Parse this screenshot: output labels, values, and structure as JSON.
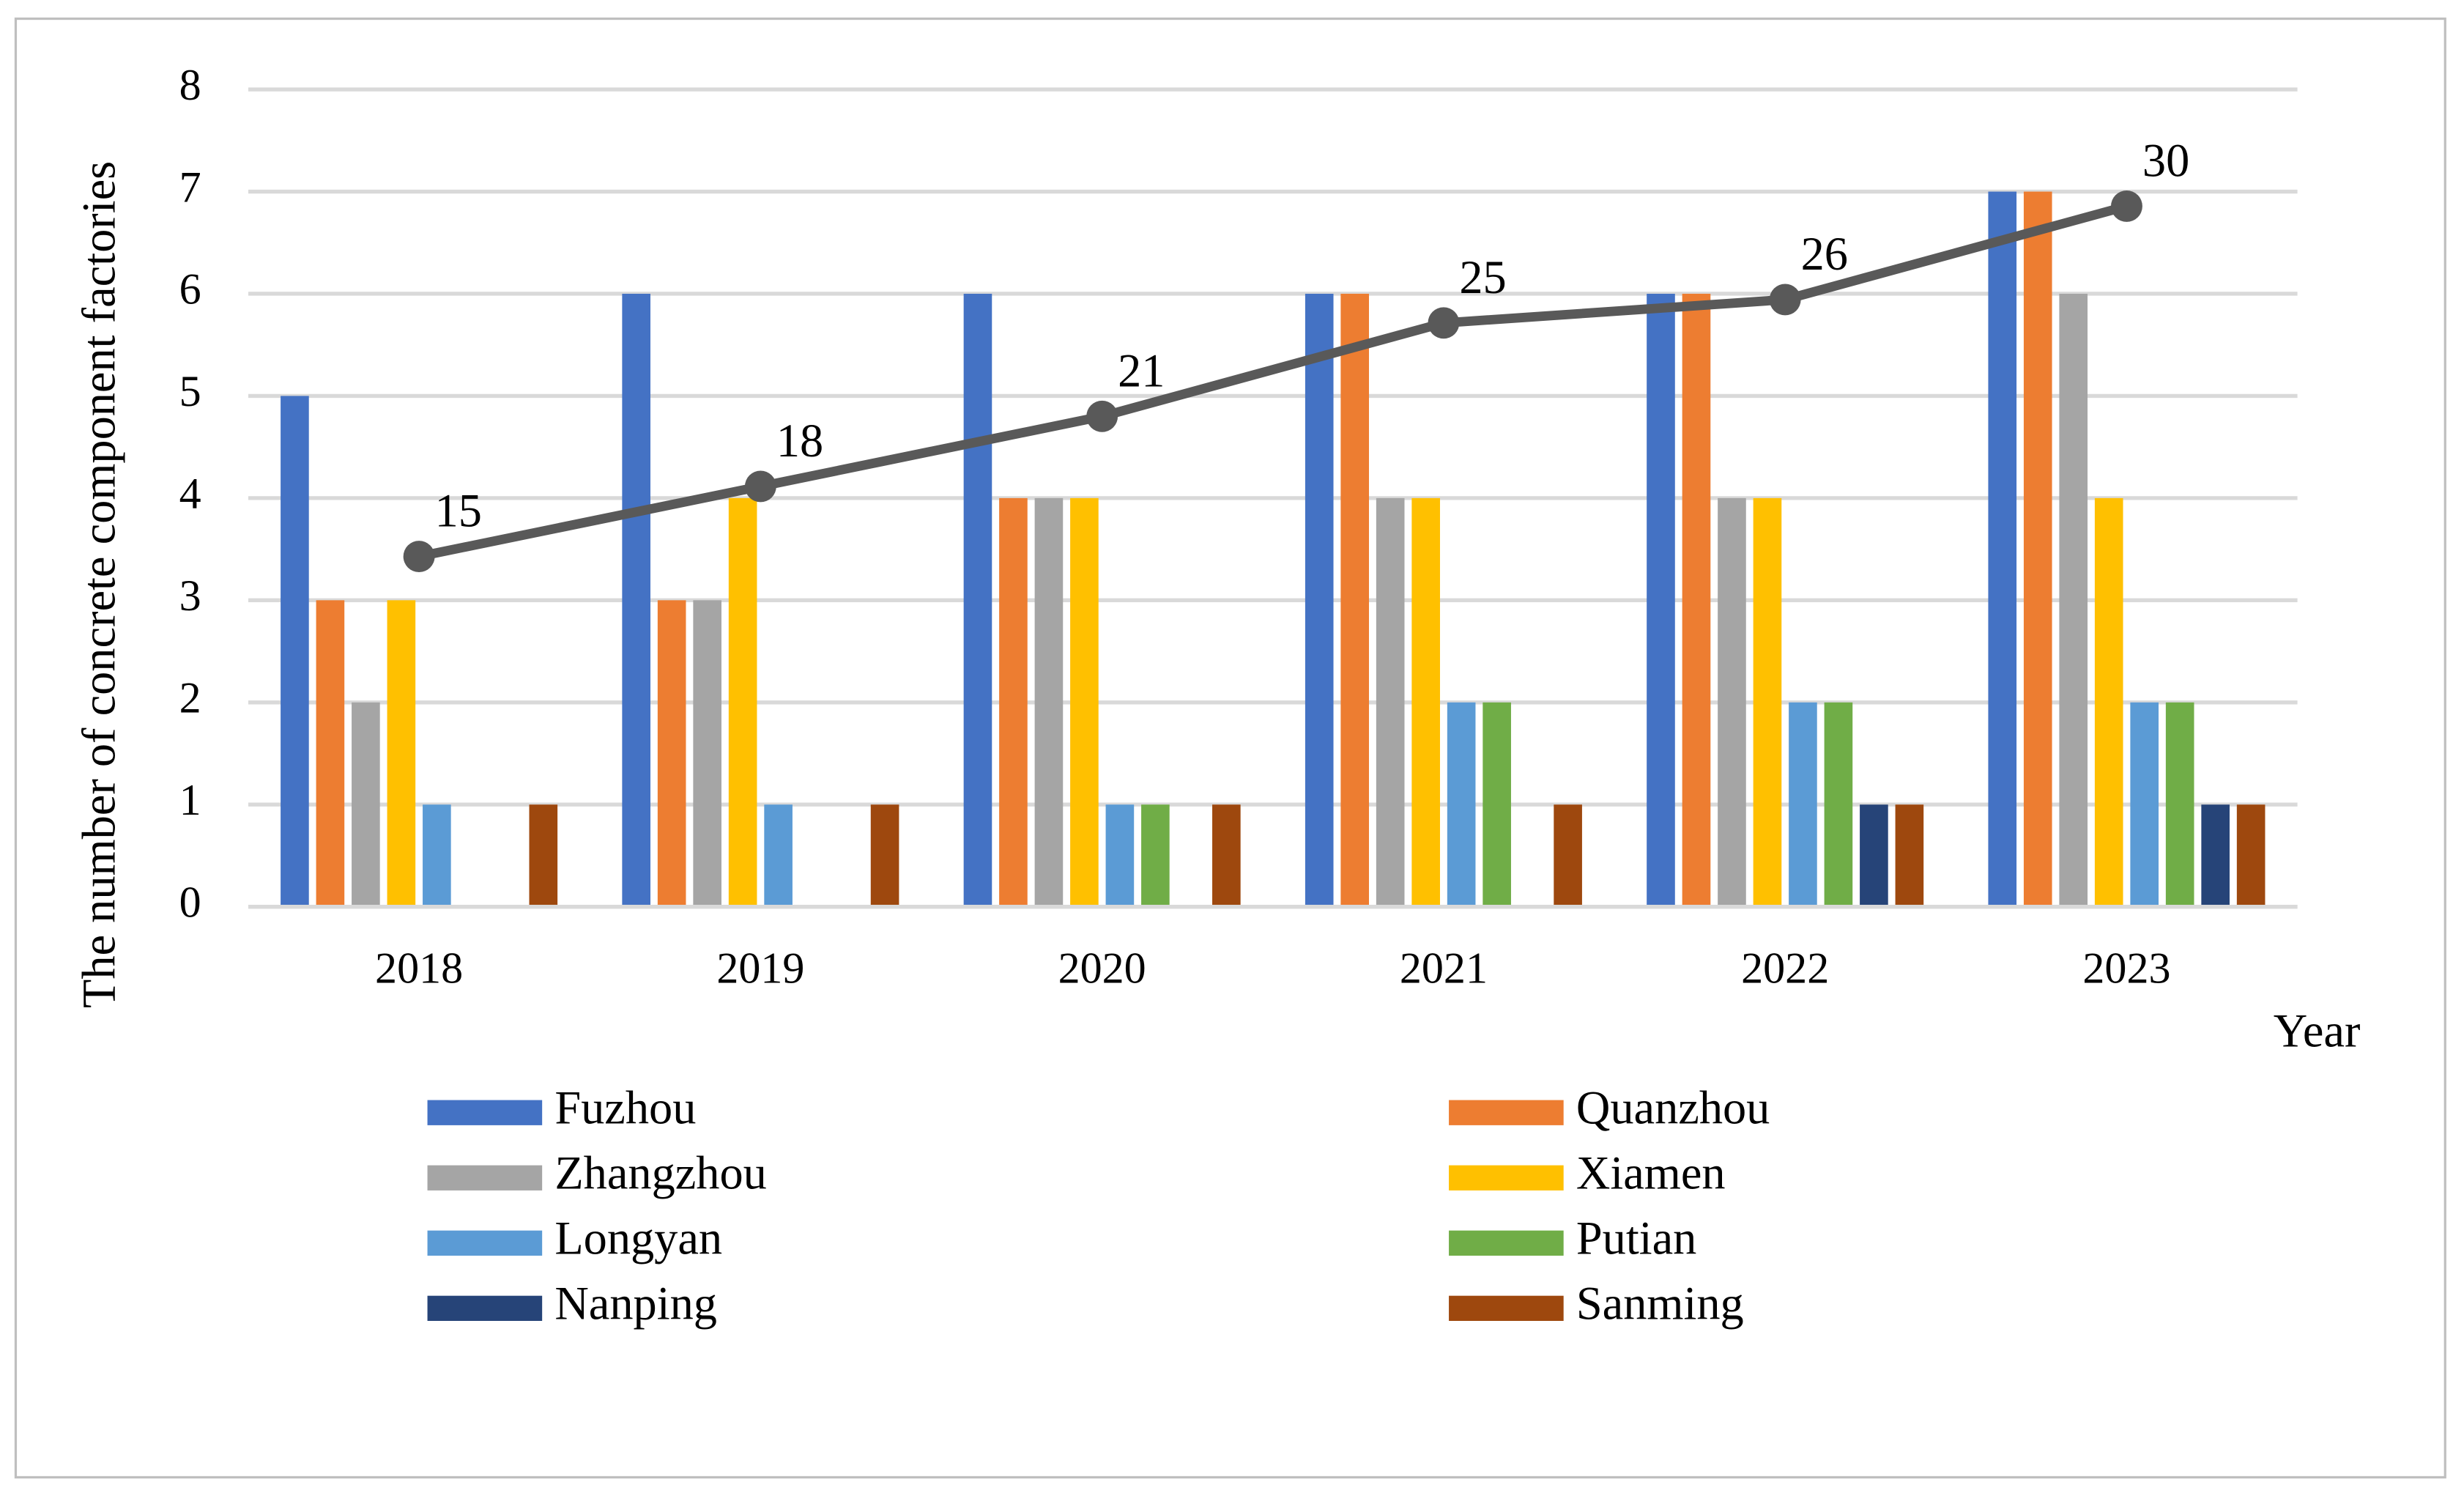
{
  "chart_data": {
    "type": "bar",
    "y_label": "The number of concrete component factories",
    "x_label": "Year",
    "categories": [
      "2018",
      "2019",
      "2020",
      "2021",
      "2022",
      "2023"
    ],
    "ylim": [
      0,
      8
    ],
    "yticks": [
      0,
      1,
      2,
      3,
      4,
      5,
      6,
      7,
      8
    ],
    "y2lim": [
      0,
      35
    ],
    "grid": true,
    "series": [
      {
        "name": "Fuzhou",
        "color": "#4472c4",
        "values": [
          5,
          6,
          6,
          6,
          6,
          7
        ]
      },
      {
        "name": "Quanzhou",
        "color": "#ed7d31",
        "values": [
          3,
          3,
          4,
          6,
          6,
          7
        ]
      },
      {
        "name": "Zhangzhou",
        "color": "#a5a5a5",
        "values": [
          2,
          3,
          4,
          4,
          4,
          6
        ]
      },
      {
        "name": "Xiamen",
        "color": "#ffc000",
        "values": [
          3,
          4,
          4,
          4,
          4,
          4
        ]
      },
      {
        "name": "Longyan",
        "color": "#5b9bd5",
        "values": [
          1,
          1,
          1,
          2,
          2,
          2
        ]
      },
      {
        "name": "Putian",
        "color": "#70ad47",
        "values": [
          0,
          0,
          1,
          2,
          2,
          2
        ]
      },
      {
        "name": "Nanping",
        "color": "#264478",
        "values": [
          0,
          0,
          0,
          0,
          1,
          1
        ]
      },
      {
        "name": "Sanming",
        "color": "#9e480e",
        "values": [
          1,
          1,
          1,
          1,
          1,
          1
        ]
      },
      {
        "type": "line",
        "axis": "y2",
        "color": "#595959",
        "values": [
          15,
          18,
          21,
          25,
          26,
          30
        ]
      }
    ]
  }
}
